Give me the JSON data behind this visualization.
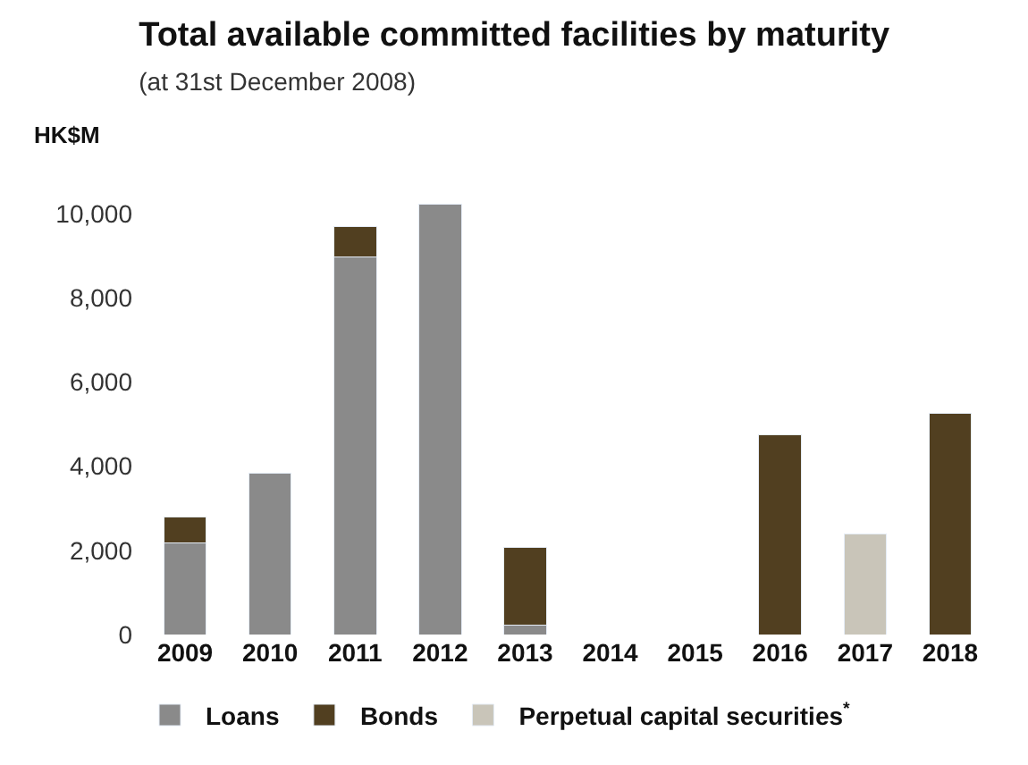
{
  "chart_data": {
    "type": "bar",
    "title": "Total available committed facilities by maturity",
    "subtitle": "(at 31st December 2008)",
    "ylabel": "HK$M",
    "categories": [
      "2009",
      "2010",
      "2011",
      "2012",
      "2013",
      "2014",
      "2015",
      "2016",
      "2017",
      "2018"
    ],
    "stacked": true,
    "series": [
      {
        "name": "Loans",
        "color": "#8a8a8a",
        "values": [
          2180,
          3840,
          8970,
          10230,
          230,
          null,
          null,
          null,
          null,
          null
        ]
      },
      {
        "name": "Bonds",
        "color": "#513f20",
        "values": [
          610,
          null,
          720,
          null,
          1830,
          null,
          null,
          4740,
          null,
          5260
        ]
      },
      {
        "name": "Perpetual capital securities$^{*}$",
        "color": "#c9c5b9",
        "values": [
          null,
          null,
          null,
          null,
          null,
          null,
          null,
          null,
          2380,
          null
        ]
      }
    ],
    "ylim": [
      0,
      10400
    ],
    "yticks": [
      0,
      {
        "value": 2000,
        "label": "2,000"
      },
      {
        "value": 4000,
        "label": "4,000"
      },
      {
        "value": 6000,
        "label": "6,000"
      },
      {
        "value": 8000,
        "label": "8,000"
      },
      {
        "value": 10000,
        "label": "10,000"
      }
    ],
    "legend": "bottom"
  }
}
